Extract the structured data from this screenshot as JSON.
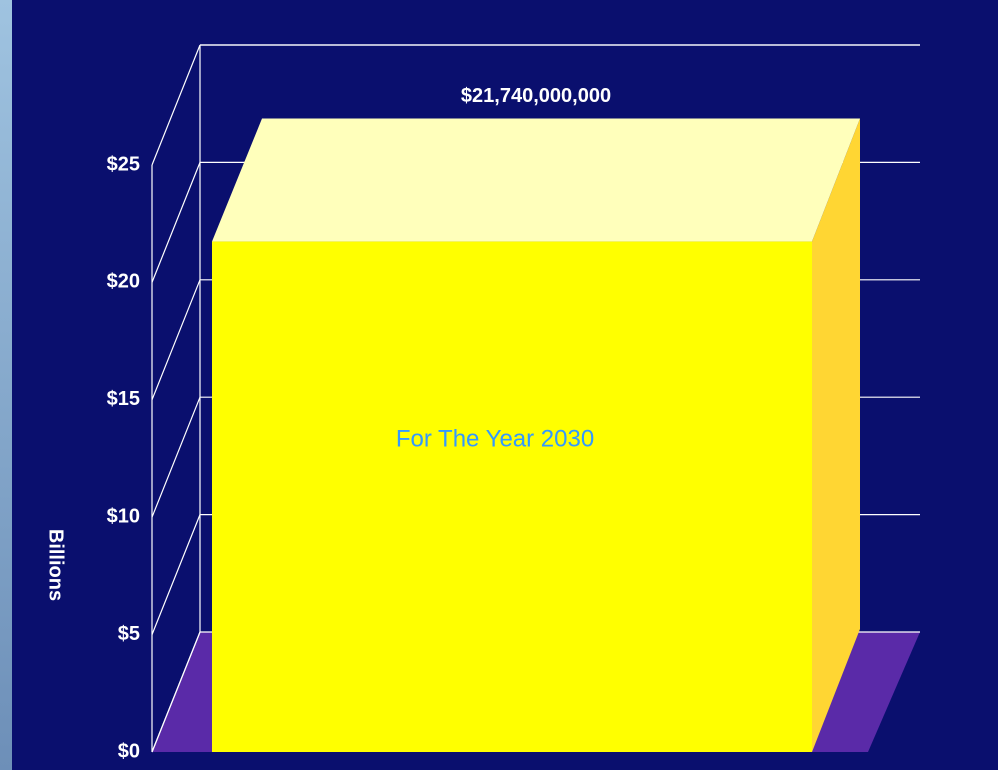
{
  "chart_data": {
    "type": "bar3d",
    "categories": [
      "For The Year 2030"
    ],
    "values": [
      21.74
    ],
    "value_labels": [
      "$21,740,000,000"
    ],
    "color": "#ffff00",
    "ylabel": "Billions",
    "ylim": [
      0,
      25
    ],
    "yticks": [
      {
        "value": 0,
        "label": "$0"
      },
      {
        "value": 5,
        "label": "$5"
      },
      {
        "value": 10,
        "label": "$10"
      },
      {
        "value": 15,
        "label": "$15"
      },
      {
        "value": 20,
        "label": "$20"
      },
      {
        "value": 25,
        "label": "$25"
      }
    ],
    "grid": true
  }
}
